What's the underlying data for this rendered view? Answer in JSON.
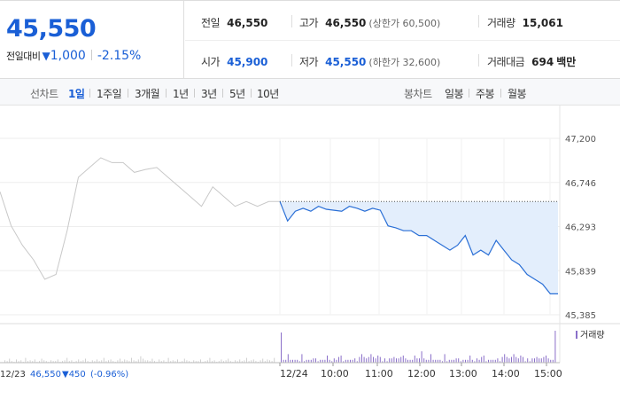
{
  "quote": {
    "price": "45,550",
    "change_label": "전일대비",
    "change_arrow": "▼",
    "change_value": "1,000",
    "change_pct": "-2.15%"
  },
  "stats": {
    "prev_close": {
      "label": "전일",
      "value": "46,550"
    },
    "high": {
      "label": "고가",
      "value": "46,550",
      "sub": "(상한가 60,500)"
    },
    "volume": {
      "label": "거래량",
      "value": "15,061"
    },
    "open": {
      "label": "시가",
      "value": "45,900"
    },
    "low": {
      "label": "저가",
      "value": "45,550",
      "sub": "(하한가 32,600)"
    },
    "amount": {
      "label": "거래대금",
      "value": "694",
      "unit": "백만"
    }
  },
  "toolbar": {
    "line_title": "선차트",
    "line_items": [
      "1일",
      "1주일",
      "3개월",
      "1년",
      "3년",
      "5년",
      "10년"
    ],
    "line_active": "1일",
    "candle_title": "봉차트",
    "candle_items": [
      "일봉",
      "주봉",
      "월봉"
    ]
  },
  "chart_data": {
    "type": "line",
    "y_ticks": [
      "47,200",
      "46,746",
      "46,293",
      "45,839",
      "45,385"
    ],
    "ylim": [
      45385,
      47200
    ],
    "x_ticks": [
      "12/24",
      "10:00",
      "11:00",
      "12:00",
      "13:00",
      "14:00",
      "15:00"
    ],
    "volume_legend": "거래량",
    "prev_day_label": "12/23",
    "prev_day_close": "46,550",
    "prev_day_change": "▼450",
    "prev_day_pct": "(-0.96%)",
    "reference_level": 46550,
    "colors": {
      "prev_day_line": "#c8c8c8",
      "today_line": "#2a6fd6",
      "fill": "#e3eefc",
      "volume_bar": "#8a6fc9"
    },
    "series": [
      {
        "values": [
          46650,
          46300,
          46100,
          45950,
          45750,
          45800,
          46250,
          46800,
          46900,
          47000,
          46950,
          46950,
          46850,
          46880,
          46900,
          46800,
          46700,
          46600,
          46500,
          46700,
          46600,
          46500,
          46550,
          46500,
          46550,
          46550
        ]
      },
      {
        "values": [
          46550,
          46350,
          46450,
          46480,
          46450,
          46500,
          46470,
          46460,
          46450,
          46500,
          46480,
          46450,
          46480,
          46460,
          46300,
          46280,
          46250,
          46250,
          46200,
          46200,
          46150,
          46100,
          46050,
          46100,
          46200,
          46000,
          46050,
          46000,
          46150,
          46050,
          45950,
          45900,
          45800,
          45750,
          45700,
          45600,
          45600
        ]
      }
    ]
  }
}
